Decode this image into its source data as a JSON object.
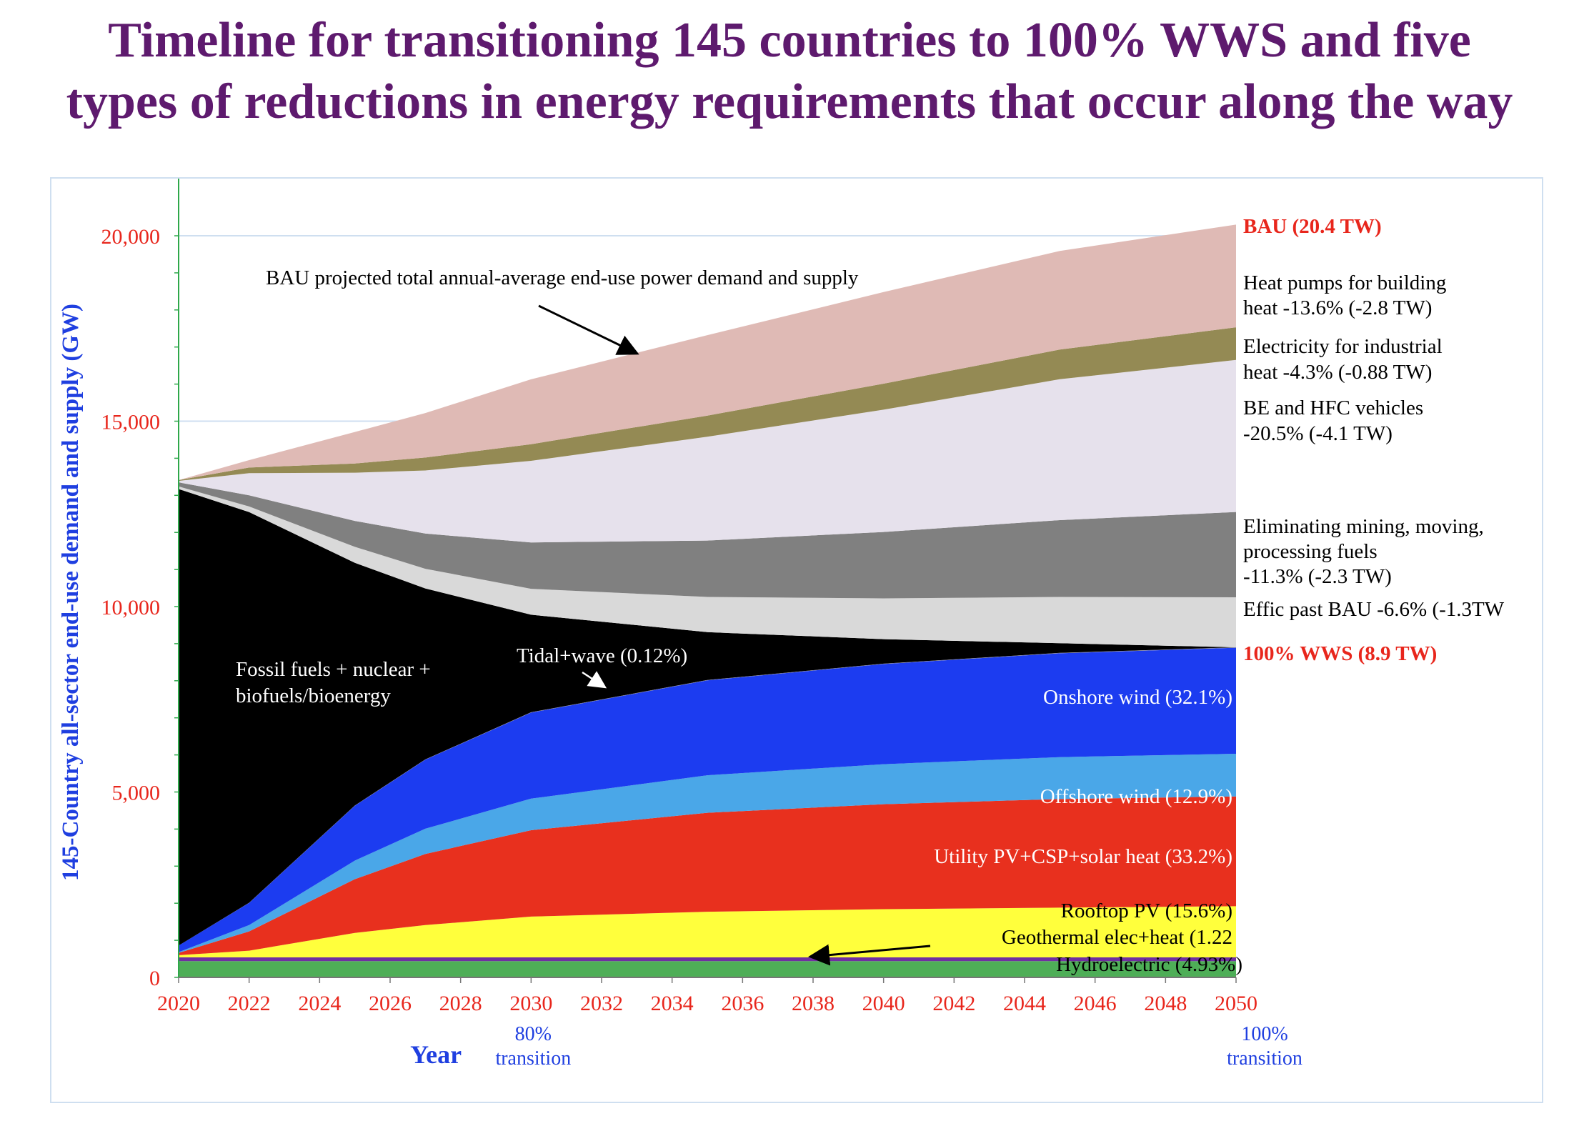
{
  "title": {
    "line1": "Timeline for transitioning 145 countries to 100% WWS and five",
    "line2": "types of reductions in energy requirements that occur along the way"
  },
  "colors": {
    "title": "#5e1a6e",
    "tick": "#e8261c",
    "ylabel": "#1f3fe0",
    "transition": "#1f3fe0",
    "bau_label": "#e8261c",
    "wws_label": "#e8261c",
    "axis_y": "#2ea84a"
  },
  "chart_data": {
    "type": "area",
    "stacked": true,
    "xlabel": "Year",
    "ylabel": "145-Country all-sector end-use demand and supply (GW)",
    "xlim": [
      2020,
      2050
    ],
    "ylim": [
      0,
      20800
    ],
    "x_ticks": [
      "2020",
      "2022",
      "2024",
      "2026",
      "2028",
      "2030",
      "2032",
      "2034",
      "2036",
      "2038",
      "2040",
      "2042",
      "2044",
      "2046",
      "2048",
      "2050"
    ],
    "y_ticks": [
      {
        "value": 0,
        "label": "0"
      },
      {
        "value": 5000,
        "label": "5,000"
      },
      {
        "value": 10000,
        "label": "10,000"
      },
      {
        "value": 15000,
        "label": "15,000"
      },
      {
        "value": 20000,
        "label": "20,000"
      }
    ],
    "x_sublabels": [
      {
        "x": 2030,
        "line1": "80%",
        "line2": "transition"
      },
      {
        "x": 2050,
        "line1": "100%",
        "line2": "transition"
      }
    ],
    "x": [
      2020,
      2022,
      2025,
      2027,
      2030,
      2035,
      2040,
      2045,
      2050
    ],
    "series": [
      {
        "name": "Hydroelectric (4.93%)",
        "color": "#4eae57",
        "values": [
          440,
          440,
          440,
          440,
          440,
          440,
          440,
          440,
          440
        ]
      },
      {
        "name": "Geothermal elec+heat (1.22",
        "color": "#7030a0",
        "values": [
          100,
          100,
          100,
          100,
          100,
          100,
          100,
          100,
          100
        ]
      },
      {
        "name": "Rooftop PV (15.6%)",
        "color": "#ffff3c",
        "values": [
          60,
          180,
          660,
          870,
          1100,
          1230,
          1300,
          1340,
          1380
        ]
      },
      {
        "name": "Utility PV+CSP+solar heat (33.2%)",
        "color": "#e8301e",
        "values": [
          60,
          520,
          1450,
          1920,
          2330,
          2670,
          2830,
          2930,
          2960
        ]
      },
      {
        "name": "Offshore wind (12.9%)",
        "color": "#4aa7e8",
        "values": [
          20,
          170,
          500,
          680,
          850,
          1010,
          1080,
          1130,
          1150
        ]
      },
      {
        "name": "Onshore wind (32.1%)",
        "color": "#1c3cf0",
        "values": [
          180,
          600,
          1480,
          1860,
          2320,
          2560,
          2700,
          2800,
          2860
        ]
      },
      {
        "name": "Tidal+wave (0.12%)",
        "color": "#8a8aa8",
        "values": [
          0,
          3,
          6,
          8,
          10,
          10,
          11,
          11,
          11
        ]
      },
      {
        "name": "Fossil fuels + nuclear + biofuels/bioenergy",
        "color": "#000000",
        "values": [
          12310,
          10537,
          6544,
          4612,
          2630,
          1290,
          660,
          260,
          0
        ]
      },
      {
        "name": "Effic past BAU -6.6% (-1.3TW",
        "color": "#d9d9d9",
        "values": [
          70,
          150,
          430,
          530,
          700,
          950,
          1100,
          1250,
          1350
        ]
      },
      {
        "name": "Eliminating mining, moving, processing fuels -11.3% (-2.3 TW)",
        "color": "#808080",
        "values": [
          110,
          300,
          700,
          950,
          1250,
          1520,
          1790,
          2070,
          2300
        ]
      },
      {
        "name": "BE and HFC vehicles -20.5% (-4.1 TW)",
        "color": "#e6e1ec",
        "values": [
          40,
          600,
          1300,
          1700,
          2200,
          2800,
          3300,
          3800,
          4100
        ]
      },
      {
        "name": "Electricity for industrial heat -4.3% (-0.88 TW)",
        "color": "#948a54",
        "values": [
          20,
          150,
          250,
          350,
          450,
          570,
          700,
          800,
          880
        ]
      },
      {
        "name": "Heat pumps for building heat -13.6% (-2.8 TW)",
        "color": "#dfbab5",
        "values": [
          0,
          200,
          850,
          1200,
          1750,
          2170,
          2470,
          2660,
          2770
        ]
      }
    ],
    "right_labels": [
      {
        "lines": [
          "BAU (20.4 TW)"
        ],
        "style": "bau"
      },
      {
        "lines": [
          "Heat pumps for building",
          "heat -13.6% (-2.8 TW)"
        ],
        "style": "normal"
      },
      {
        "lines": [
          "Electricity for industrial",
          "heat -4.3% (-0.88 TW)"
        ],
        "style": "normal"
      },
      {
        "lines": [
          "BE and HFC vehicles",
          "-20.5% (-4.1 TW)"
        ],
        "style": "normal"
      },
      {
        "lines": [
          "Eliminating mining, moving,",
          "processing fuels",
          "-11.3% (-2.3 TW)"
        ],
        "style": "normal"
      },
      {
        "lines": [
          "Effic past BAU -6.6% (-1.3TW"
        ],
        "style": "normal"
      },
      {
        "lines": [
          "100% WWS (8.9 TW)"
        ],
        "style": "wws"
      }
    ],
    "annotations": {
      "bau_note": "BAU projected total annual-average end-use power demand and supply",
      "fossil_line1": "Fossil fuels + nuclear +",
      "fossil_line2": "biofuels/bioenergy",
      "tidal": "Tidal+wave (0.12%)",
      "onshore": "Onshore wind (32.1%)",
      "offshore": "Offshore wind (12.9%)",
      "utility": "Utility PV+CSP+solar heat (33.2%)",
      "rooftop": "Rooftop PV (15.6%)",
      "geothermal": "Geothermal elec+heat (1.22",
      "hydro": "Hydroelectric (4.93%)"
    }
  }
}
